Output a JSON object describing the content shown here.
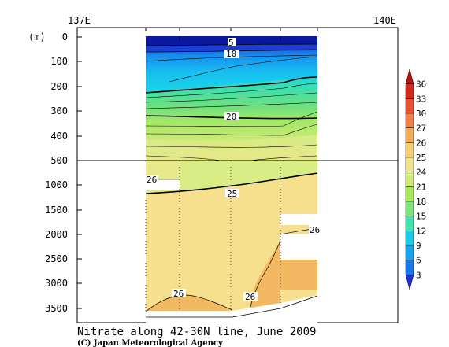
{
  "chart_data": {
    "type": "heatmap",
    "title": "Nitrate along 42-30N line, June 2009",
    "credit": "(C) Japan Meteorological Agency",
    "y_unit": "(m)",
    "x_ticks": [
      "137E",
      "140E"
    ],
    "y_ticks_upper": [
      "0",
      "100",
      "200",
      "300",
      "400",
      "500"
    ],
    "y_ticks_lower": [
      "1000",
      "1500",
      "2000",
      "2500",
      "3000",
      "3500"
    ],
    "y_axis_break_depth": 500,
    "contour_labels": [
      {
        "text": "5",
        "depth": 20
      },
      {
        "text": "10",
        "depth": 75
      },
      {
        "text": "20",
        "depth": 325
      },
      {
        "text": "25",
        "depth": 1030
      },
      {
        "text": "26",
        "depth": 880
      },
      {
        "text": "26",
        "depth": 2000
      },
      {
        "text": "26",
        "depth": 3200
      },
      {
        "text": "26",
        "depth": 3300
      }
    ],
    "colorbar": {
      "levels": [
        "3",
        "6",
        "9",
        "12",
        "15",
        "18",
        "21",
        "24",
        "25",
        "26",
        "27",
        "30",
        "33",
        "36"
      ],
      "colors": [
        "#1f2fd6",
        "#1478ee",
        "#14a7f0",
        "#18cdea",
        "#40e2b0",
        "#7fe57a",
        "#a8e85a",
        "#cfe87a",
        "#f3e48c",
        "#f6cd70",
        "#f2ad58",
        "#ee8048",
        "#e85030",
        "#d82818",
        "#c01008"
      ]
    }
  }
}
